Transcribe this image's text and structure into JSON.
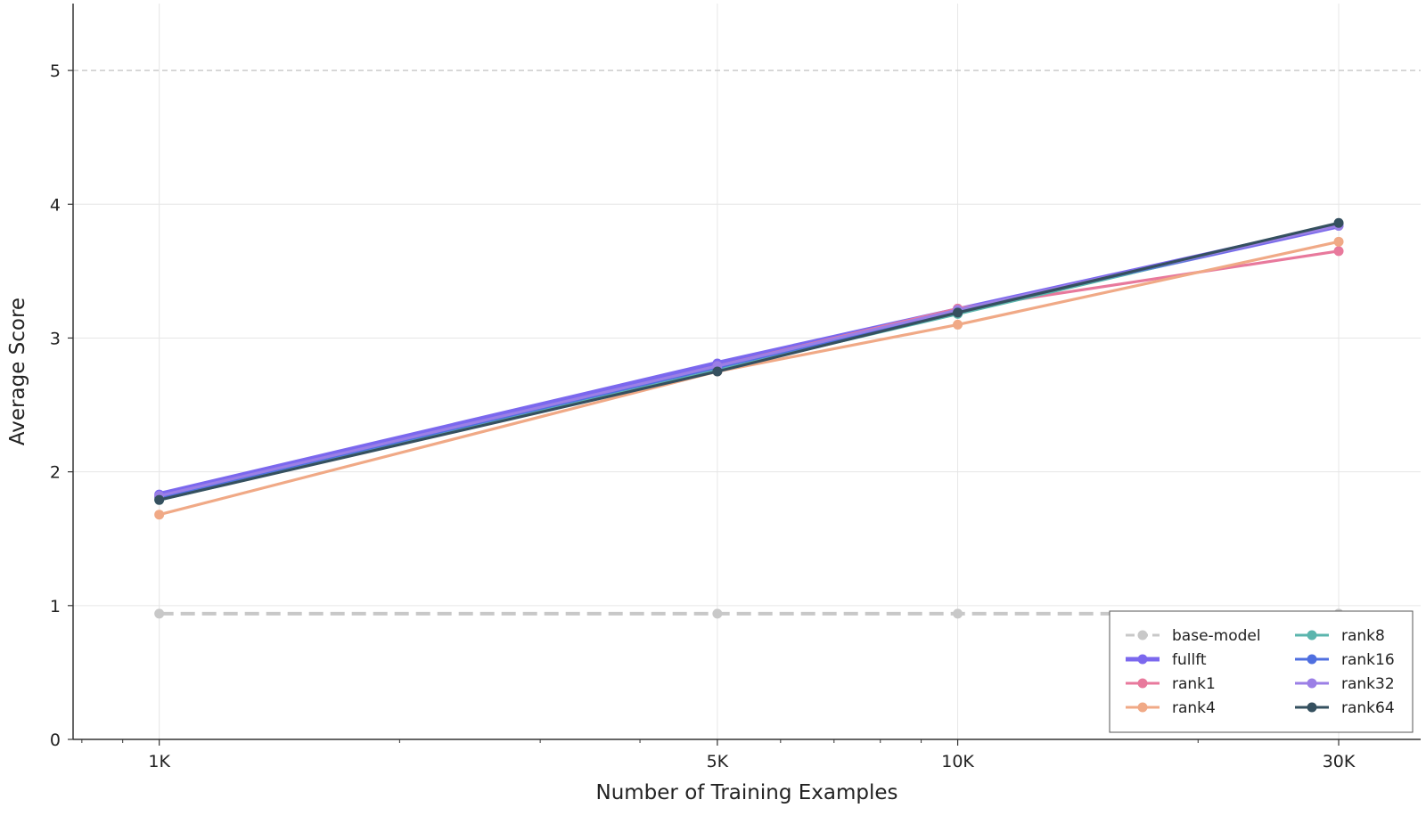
{
  "chart_data": {
    "type": "line",
    "xlabel": "Number of Training Examples",
    "ylabel": "Average Score",
    "x_scale": "log",
    "x": [
      1000,
      5000,
      10000,
      30000
    ],
    "x_tick_labels": [
      "1K",
      "5K",
      "10K",
      "30K"
    ],
    "xlim": [
      780,
      38000
    ],
    "ylim": [
      0,
      5.5
    ],
    "y_ticks": [
      0,
      1,
      2,
      3,
      4,
      5
    ],
    "y_tick_labels": [
      "0",
      "1",
      "2",
      "3",
      "4",
      "5"
    ],
    "reference_line_y": 5,
    "grid": true,
    "legend_position": "bottom-right",
    "legend_columns": 2,
    "series": [
      {
        "name": "base-model",
        "values": [
          0.94,
          0.94,
          0.94,
          0.94
        ],
        "color": "#c8c8c8",
        "dashed": true
      },
      {
        "name": "fullft",
        "values": [
          1.83,
          2.81,
          3.21,
          3.84
        ],
        "color": "#7b68ee",
        "bold": true
      },
      {
        "name": "rank1",
        "values": [
          1.81,
          2.79,
          3.22,
          3.65
        ],
        "color": "#e8799c"
      },
      {
        "name": "rank4",
        "values": [
          1.68,
          2.75,
          3.1,
          3.72
        ],
        "color": "#f0a986"
      },
      {
        "name": "rank8",
        "values": [
          1.79,
          2.76,
          3.18,
          3.85
        ],
        "color": "#5bb5ad"
      },
      {
        "name": "rank16",
        "values": [
          1.81,
          2.78,
          3.2,
          3.84
        ],
        "color": "#4f6fe0"
      },
      {
        "name": "rank32",
        "values": [
          1.82,
          2.79,
          3.21,
          3.84
        ],
        "color": "#9b7fe6"
      },
      {
        "name": "rank64",
        "values": [
          1.79,
          2.75,
          3.19,
          3.86
        ],
        "color": "#35505f"
      }
    ]
  }
}
